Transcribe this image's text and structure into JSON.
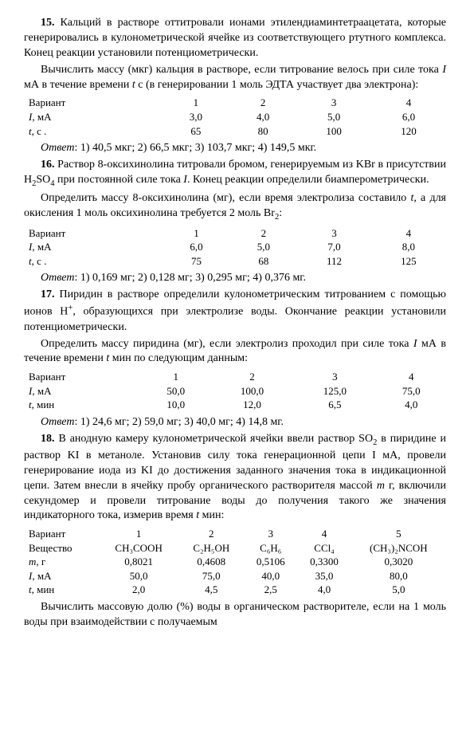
{
  "p15": {
    "num": "15.",
    "para1": "Кальций в растворе оттитровали ионами этилендиамин­тетраацетата, которые генерировались в кулонометрической ячей­ке из соответствующего ртутного комплекса. Конец реакции уста­новили потенциометрически.",
    "para2_a": "Вычислить массу (мкг) кальция в растворе, если титрование велось при силе тока ",
    "para2_b": " мА в течение времени ",
    "para2_c": " с (в генерирова­нии 1 моль ЭДТА участвует два электрона):",
    "I_sym": "I",
    "t_sym": "t",
    "tab": {
      "h": [
        "Вариант",
        "1",
        "2",
        "3",
        "4"
      ],
      "r1": [
        "I,  мА",
        "3,0",
        "4,0",
        "5,0",
        "6,0"
      ],
      "r2": [
        "t,  с  .",
        "65",
        "80",
        "100",
        "120"
      ]
    },
    "ans_lbl": "Ответ",
    "ans": ": 1) 40,5 мкг; 2) 66,5 мкг; 3) 103,7 мкг; 4) 149,5 мкг."
  },
  "p16": {
    "num": "16.",
    "para1_a": "Раствор 8-оксихинолина титровали бромом, генерируемым из KBr в присутствии H",
    "para1_b": "SO",
    "para1_c": " при постоянной силе тока ",
    "para1_d": ". Конец реакции определили биамперометрически.",
    "I_sym": "I",
    "para2_a": "Определить массу 8-оксихинолина (мг), если время электро­лиза составило ",
    "para2_b": ", а для окисления 1 моль оксихинолина требу­ется 2 моль Br",
    "para2_c": ":",
    "t_sym": "t",
    "tab": {
      "h": [
        "Вариант",
        "1",
        "2",
        "3",
        "4"
      ],
      "r1": [
        "I,  мА",
        "6,0",
        "5,0",
        "7,0",
        "8,0"
      ],
      "r2": [
        "t,  с  .",
        "75",
        "68",
        "112",
        "125"
      ]
    },
    "ans_lbl": "Ответ",
    "ans": ": 1) 0,169 мг; 2) 0,128 мг; 3) 0,295 мг; 4) 0,376 мг."
  },
  "p17": {
    "num": "17.",
    "para1_a": "Пиридин в растворе определили кулонометрическим тит­рованием с помощью ионов H",
    "para1_b": ", образующихся при электролизе воды. Окончание реакции установили потенциометрически.",
    "sup_plus": "+",
    "para2_a": "Определить массу пиридина (мг), если электролиз проходил при силе тока ",
    "para2_b": " мА в течение времени ",
    "para2_c": " мин по следующим данным:",
    "I_sym": "I",
    "t_sym": "t",
    "tab": {
      "h": [
        "Вариант",
        "1",
        "2",
        "3",
        "4"
      ],
      "r1": [
        "I,  мА",
        "50,0",
        "100,0",
        "125,0",
        "75,0"
      ],
      "r2": [
        "t,  мин",
        "10,0",
        "12,0",
        "6,5",
        "4,0"
      ]
    },
    "ans_lbl": "Ответ",
    "ans": ": 1) 24,6 мг; 2) 59,0 мг; 3) 40,0 мг; 4) 14,8 мг."
  },
  "p18": {
    "num": "18.",
    "para1_a": "В анодную камеру кулонометрической ячейки ввели рас­твор SO",
    "para1_b": " в пиридине и раствор KI в метаноле. Установив силу тока генерационной цепи I мА, провели генерирование иода из KI до достижения заданного значения тока в индикационной цепи. Затем внесли в ячейку пробу органического растворителя массой ",
    "para1_c": " г, включили секундомер и провели титрование воды до получения такого же значения индикаторного тока, измерив время ",
    "para1_d": " мин:",
    "m_sym": "m",
    "t_sym": "t",
    "tab": {
      "h": [
        "Вариант",
        "1",
        "2",
        "3",
        "4",
        "5"
      ],
      "r1": [
        "Вещество",
        "CH₃COOH",
        "C₂H₅OH",
        "C₆H₆",
        "CCl₄",
        "(CH₃)₂NCOH"
      ],
      "r2": [
        "m,  г",
        "0,8021",
        "0,4608",
        "0,5106",
        "0,3300",
        "0,3020"
      ],
      "r3": [
        "I,  мА",
        "50,0",
        "75,0",
        "40,0",
        "35,0",
        "80,0"
      ],
      "r4": [
        "t,  мин",
        "2,0",
        "4,5",
        "2,5",
        "4,0",
        "5,0"
      ]
    },
    "para2": "Вычислить массовую долю (%) воды в органическом раство­рителе, если на 1 моль воды при взаимодействии с получаемым"
  }
}
